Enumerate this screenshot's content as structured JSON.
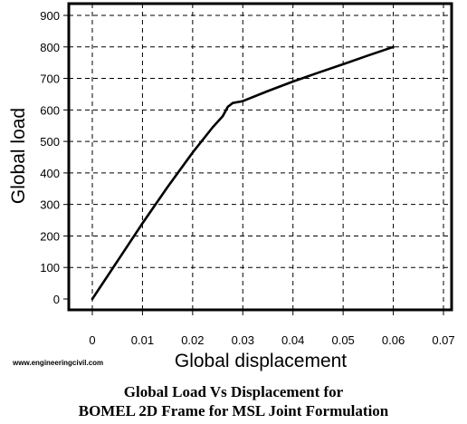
{
  "chart_data": {
    "type": "line",
    "title": "",
    "xlabel": "Global displacement",
    "ylabel": "Global load",
    "xlim": [
      0,
      0.07
    ],
    "ylim": [
      0,
      900
    ],
    "xticks": [
      "0",
      "0.01",
      "0.02",
      "0.03",
      "0.04",
      "0.05",
      "0.06",
      "0.07"
    ],
    "yticks": [
      "0",
      "100",
      "200",
      "300",
      "400",
      "500",
      "600",
      "700",
      "800",
      "900"
    ],
    "grid": true,
    "series": [
      {
        "x": [
          0,
          0.005,
          0.01,
          0.015,
          0.02,
          0.024,
          0.026,
          0.027,
          0.028,
          0.03,
          0.035,
          0.04,
          0.045,
          0.05,
          0.055,
          0.06
        ],
        "y": [
          0,
          120,
          240,
          355,
          465,
          545,
          580,
          610,
          622,
          628,
          660,
          690,
          718,
          745,
          773,
          800
        ]
      }
    ],
    "line_color": "#000000"
  },
  "watermark": "www.engineeringcivil.com",
  "caption": {
    "line1": "Global Load Vs Displacement for",
    "line2": "BOMEL 2D Frame for MSL Joint Formulation"
  }
}
